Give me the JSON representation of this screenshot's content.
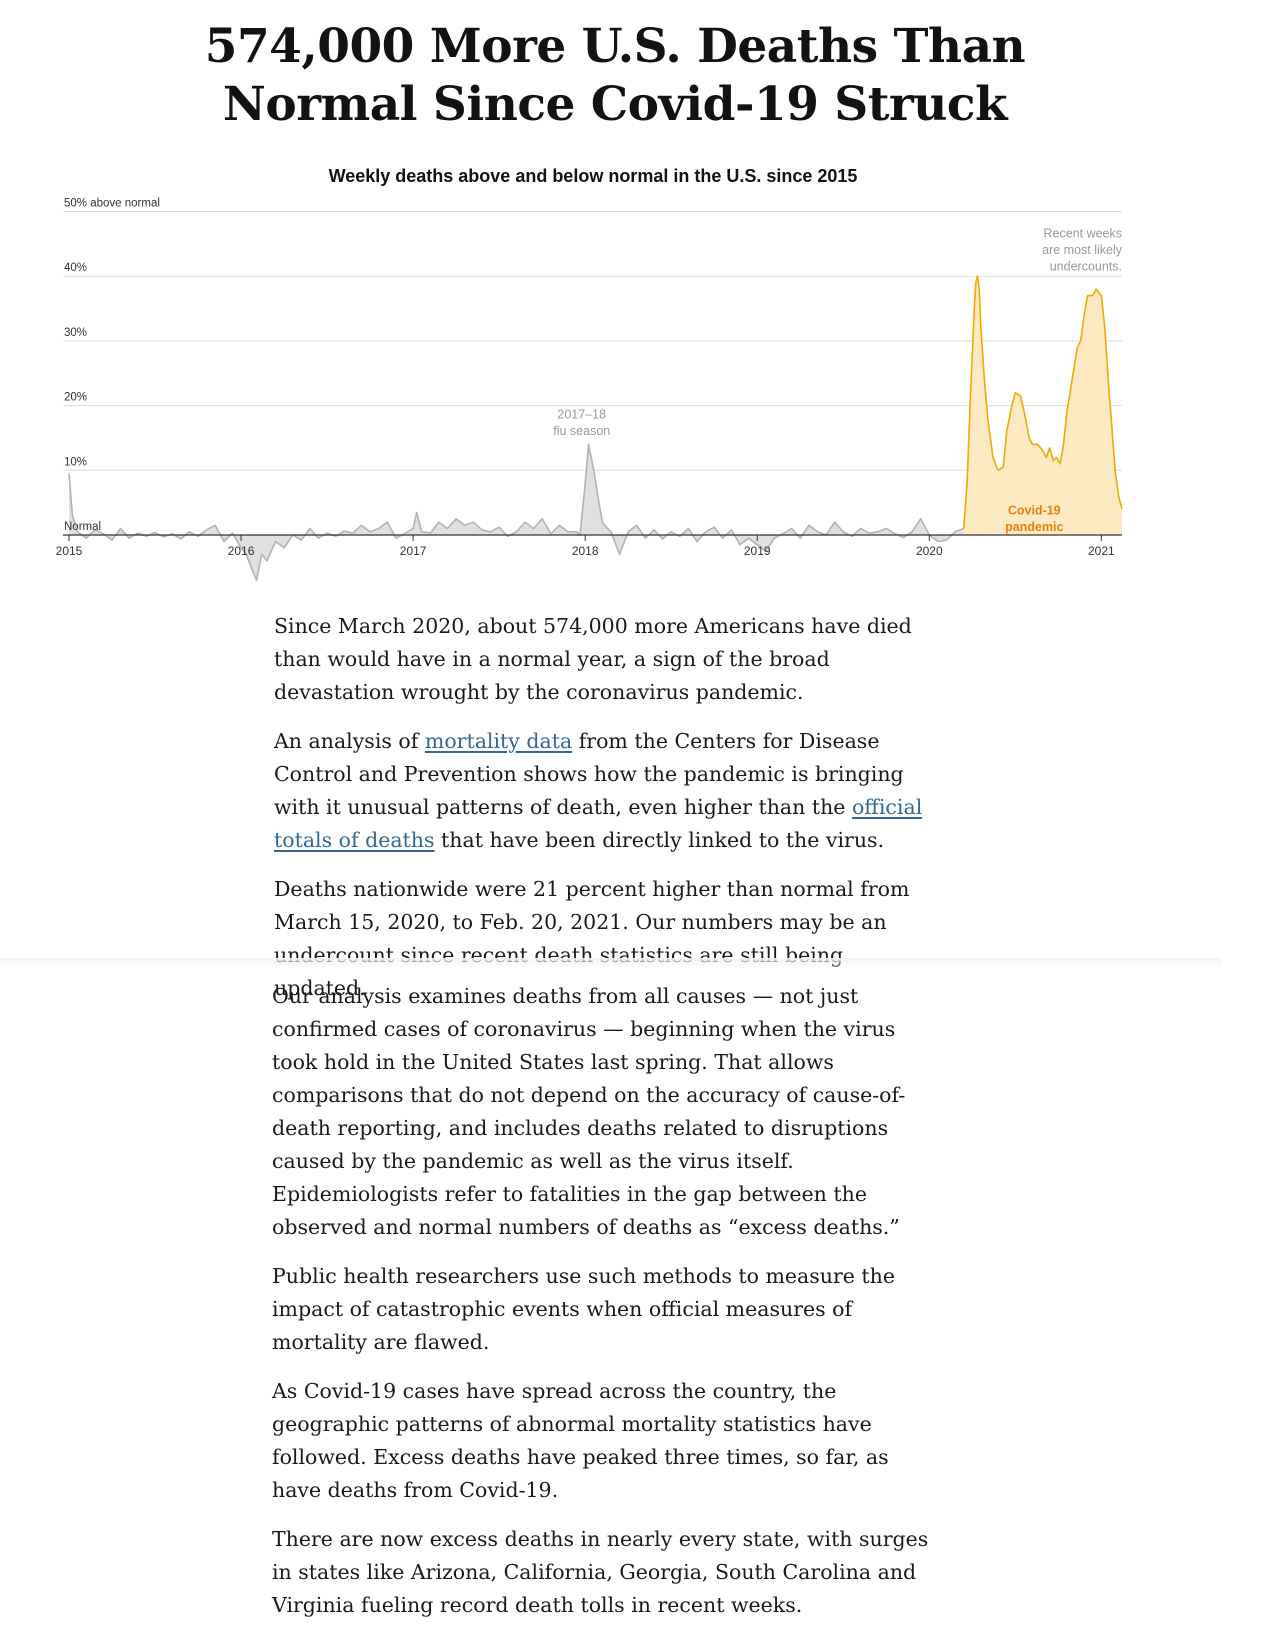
{
  "headline": {
    "line1": "574,000 More U.S. Deaths Than",
    "line2": "Normal Since Covid-19 Struck"
  },
  "chart_data": {
    "type": "area",
    "title": "Weekly deaths above and below normal in the U.S. since 2015",
    "xlabel": "",
    "ylabel": "",
    "ylim": [
      -8,
      50
    ],
    "xlim": [
      2015,
      2021.12
    ],
    "y_ticks": [
      {
        "value": 50,
        "label": "50% above normal"
      },
      {
        "value": 40,
        "label": "40%"
      },
      {
        "value": 30,
        "label": "30%"
      },
      {
        "value": 20,
        "label": "20%"
      },
      {
        "value": 10,
        "label": "10%"
      },
      {
        "value": 0,
        "label": "Normal"
      }
    ],
    "x_ticks": [
      {
        "value": 2015,
        "label": "2015"
      },
      {
        "value": 2016,
        "label": "2016"
      },
      {
        "value": 2017,
        "label": "2017"
      },
      {
        "value": 2018,
        "label": "2018"
      },
      {
        "value": 2019,
        "label": "2019"
      },
      {
        "value": 2020,
        "label": "2020"
      },
      {
        "value": 2021,
        "label": "2021"
      }
    ],
    "grid": true,
    "baseline_series": {
      "color": "#b3b3b3",
      "fill": "#e0e0e0",
      "x": [
        2015.0,
        2015.02,
        2015.05,
        2015.1,
        2015.15,
        2015.2,
        2015.25,
        2015.3,
        2015.35,
        2015.4,
        2015.45,
        2015.5,
        2015.55,
        2015.6,
        2015.65,
        2015.7,
        2015.75,
        2015.8,
        2015.85,
        2015.9,
        2015.95,
        2016.0,
        2016.03,
        2016.06,
        2016.09,
        2016.12,
        2016.15,
        2016.2,
        2016.25,
        2016.3,
        2016.35,
        2016.4,
        2016.45,
        2016.5,
        2016.55,
        2016.6,
        2016.65,
        2016.7,
        2016.75,
        2016.8,
        2016.85,
        2016.9,
        2016.95,
        2017.0,
        2017.02,
        2017.05,
        2017.1,
        2017.15,
        2017.2,
        2017.25,
        2017.3,
        2017.35,
        2017.4,
        2017.45,
        2017.5,
        2017.55,
        2017.6,
        2017.65,
        2017.7,
        2017.75,
        2017.8,
        2017.85,
        2017.9,
        2017.95,
        2017.97,
        2018.0,
        2018.02,
        2018.05,
        2018.08,
        2018.1,
        2018.13,
        2018.15,
        2018.2,
        2018.25,
        2018.3,
        2018.35,
        2018.4,
        2018.45,
        2018.5,
        2018.55,
        2018.6,
        2018.65,
        2018.7,
        2018.75,
        2018.8,
        2018.85,
        2018.9,
        2018.95,
        2019.0,
        2019.05,
        2019.1,
        2019.15,
        2019.2,
        2019.25,
        2019.3,
        2019.35,
        2019.4,
        2019.45,
        2019.5,
        2019.55,
        2019.6,
        2019.65,
        2019.7,
        2019.75,
        2019.8,
        2019.85,
        2019.9,
        2019.95,
        2020.0,
        2020.05,
        2020.1,
        2020.15,
        2020.2
      ],
      "values": [
        9.5,
        3,
        0.5,
        -0.5,
        0.8,
        0.2,
        -0.8,
        1,
        -0.5,
        0.3,
        -0.2,
        0.4,
        -0.3,
        0.2,
        -0.6,
        0.5,
        -0.2,
        0.8,
        1.5,
        -1,
        0.3,
        -2,
        -3,
        -5,
        -7,
        -3,
        -4,
        -1,
        -2,
        0,
        -0.8,
        1,
        -0.5,
        0.3,
        -0.2,
        0.6,
        0.3,
        1.5,
        0.5,
        1,
        2,
        -0.5,
        0.2,
        1,
        3.5,
        0.5,
        0.3,
        2,
        1,
        2.5,
        1.5,
        2,
        0.8,
        0.5,
        1.2,
        -0.2,
        0.5,
        2,
        1,
        2.5,
        0.2,
        1.5,
        0.5,
        0.5,
        0,
        8,
        14,
        10,
        5,
        2,
        1,
        0.5,
        -3,
        0.5,
        1.5,
        -0.5,
        0.8,
        -0.6,
        0.5,
        -0.2,
        1,
        -1,
        0.5,
        1.2,
        -0.5,
        0.8,
        -1.5,
        -0.5,
        -1.5,
        -2.5,
        -0.5,
        0.2,
        1,
        -0.5,
        1.5,
        0.5,
        0,
        2,
        0.5,
        -0.2,
        1,
        0.3,
        0.5,
        1,
        0.2,
        -0.4,
        0.5,
        2.5,
        0,
        -1,
        -0.8,
        0.5,
        1
      ]
    },
    "series": [
      {
        "name": "Covid-19 pandemic",
        "color": "#f2a900",
        "fill": "#fde9c2",
        "x": [
          2020.2,
          2020.22,
          2020.24,
          2020.26,
          2020.27,
          2020.28,
          2020.29,
          2020.3,
          2020.32,
          2020.34,
          2020.37,
          2020.4,
          2020.43,
          2020.45,
          2020.48,
          2020.5,
          2020.53,
          2020.56,
          2020.58,
          2020.6,
          2020.63,
          2020.66,
          2020.68,
          2020.7,
          2020.72,
          2020.74,
          2020.76,
          2020.78,
          2020.8,
          2020.83,
          2020.86,
          2020.88,
          2020.9,
          2020.92,
          2020.95,
          2020.97,
          2021.0,
          2021.02,
          2021.04,
          2021.06,
          2021.08,
          2021.1,
          2021.12
        ],
        "values": [
          1,
          8,
          22,
          34,
          39,
          40,
          38,
          32,
          24,
          18,
          12,
          10,
          10.5,
          16,
          20,
          22,
          21.5,
          18,
          15,
          14,
          14,
          13,
          12,
          13.5,
          11.5,
          12,
          11,
          14,
          19,
          24,
          29,
          30,
          34,
          37,
          37,
          38,
          37,
          32,
          24,
          17,
          10,
          6,
          4
        ]
      }
    ],
    "annotations": [
      {
        "id": "flu",
        "lines": [
          "2017–18",
          "flu season"
        ],
        "x": 2017.98,
        "y": 18
      },
      {
        "id": "recent",
        "lines": [
          "Recent weeks",
          "are most likely",
          "undercounts."
        ],
        "x": 2021.12,
        "y": 46
      },
      {
        "id": "covid",
        "lines": [
          "Covid-19",
          "pandemic"
        ],
        "x": 2020.61,
        "y": 3.2
      }
    ],
    "colors": {
      "grid": "#dddddd",
      "axis": "#333333",
      "tick_text": "#333333",
      "annotation_text": "#999999",
      "covid_label": "#e8820c"
    }
  },
  "article": {
    "p1": "Since March 2020, about 574,000 more Americans have died than would have in a normal year, a sign of the broad devastation wrought by the coronavirus pandemic.",
    "p2_before": "An analysis of ",
    "p2_link1": "mortality data",
    "p2_middle": " from the Centers for Disease Control and Prevention shows how the pandemic is bringing with it unusual patterns of death, even higher than the ",
    "p2_link2": "official totals of deaths",
    "p2_after": " that have been directly linked to the virus.",
    "p3": "Deaths nationwide were 21 percent higher than normal from March 15, 2020, to Feb. 20, 2021. Our numbers may be an undercount since recent death statistics are still being updated.",
    "p4": "Our analysis examines deaths from all causes — not just confirmed cases of coronavirus — beginning when the virus took hold in the United States last spring. That allows comparisons that do not depend on the accuracy of cause-of-death reporting, and includes deaths related to disruptions caused by the pandemic as well as the virus itself. Epidemiologists refer to fatalities in the gap between the observed and normal numbers of deaths as “excess deaths.”",
    "p5": "Public health researchers use such methods to measure the impact of catastrophic events when official measures of mortality are flawed.",
    "p6": "As Covid-19 cases have spread across the country, the geographic patterns of abnormal mortality statistics have followed. Excess deaths have peaked three times, so far, as have deaths from Covid-19.",
    "p7": "There are now excess deaths in nearly every state, with surges in states like Arizona, California, Georgia, South Carolina and Virginia fueling record death tolls in recent weeks."
  }
}
